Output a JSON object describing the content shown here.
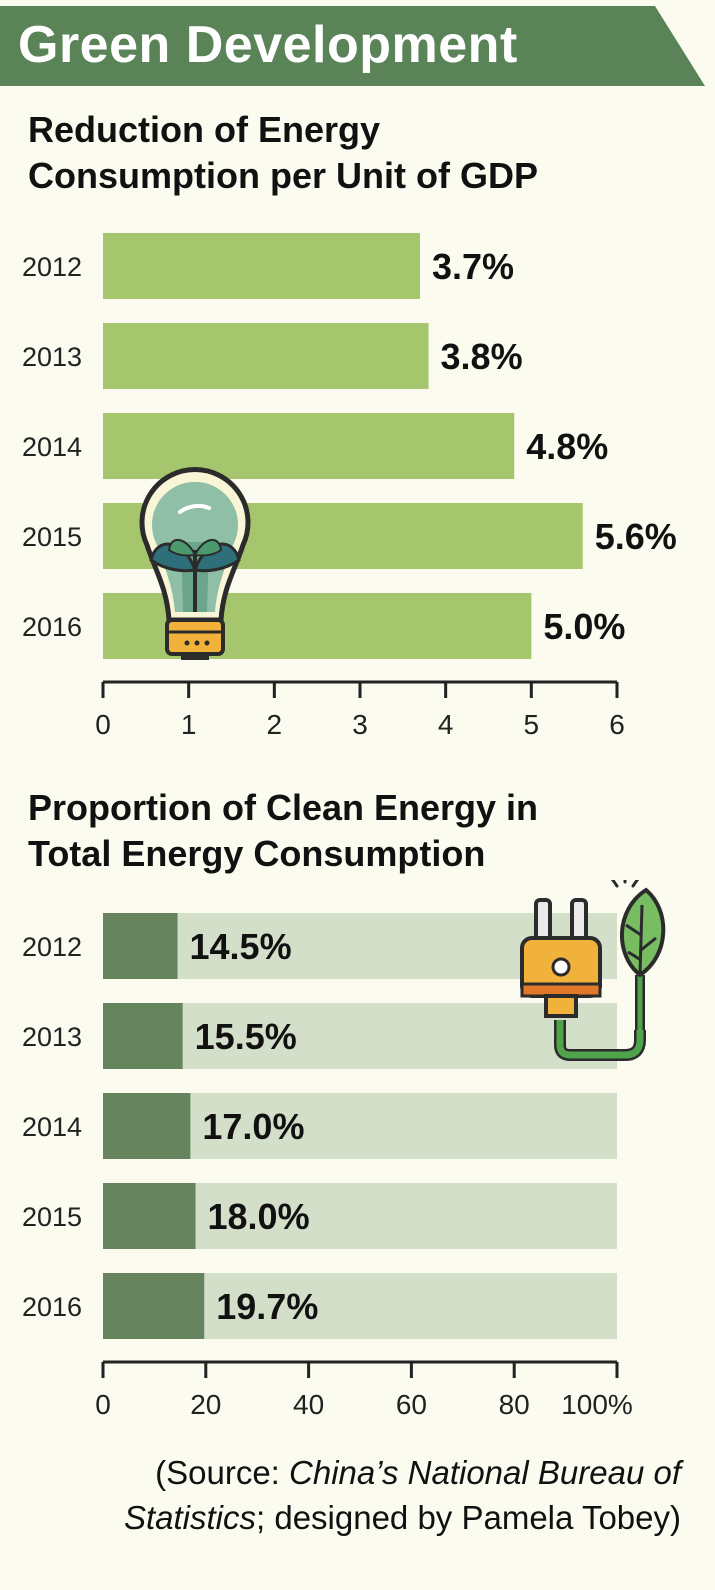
{
  "header": {
    "title": "Green Development"
  },
  "colors": {
    "header_bg": "#5a8358",
    "bar_light_green": "#a5c66c",
    "bar_dark_green": "#66855f",
    "bar_track": "#d4dfca",
    "background": "#fbfbef"
  },
  "chart_data": [
    {
      "type": "bar",
      "orientation": "horizontal",
      "title": "Reduction of Energy Consumption per Unit of GDP",
      "categories": [
        "2012",
        "2013",
        "2014",
        "2015",
        "2016"
      ],
      "values": [
        3.7,
        3.8,
        4.8,
        5.6,
        5.0
      ],
      "value_labels": [
        "3.7%",
        "3.8%",
        "4.8%",
        "5.6%",
        "5.0%"
      ],
      "xlim": [
        0,
        6
      ],
      "x_ticks": [
        "0",
        "1",
        "2",
        "3",
        "4",
        "5",
        "6"
      ],
      "xlabel": "",
      "ylabel": ""
    },
    {
      "type": "bar",
      "orientation": "horizontal",
      "title": "Proportion of Clean Energy in Total Energy Consumption",
      "categories": [
        "2012",
        "2013",
        "2014",
        "2015",
        "2016"
      ],
      "values": [
        14.5,
        15.5,
        17.0,
        18.0,
        19.7
      ],
      "value_labels": [
        "14.5%",
        "15.5%",
        "17.0%",
        "18.0%",
        "19.7%"
      ],
      "xlim": [
        0,
        100
      ],
      "x_ticks": [
        "0",
        "20",
        "40",
        "60",
        "80",
        "100%"
      ],
      "xlabel": "",
      "ylabel": ""
    }
  ],
  "source": {
    "open": "(Source: ",
    "org": "China’s National Bureau of Statistics",
    "rest": "; designed by Pamela Tobey)"
  },
  "icons": [
    "lightbulb-icon",
    "plug-leaf-icon"
  ]
}
